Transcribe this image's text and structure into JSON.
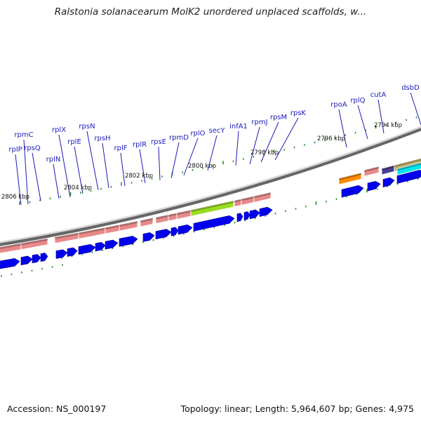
{
  "title": "Ralstonia solanacearum MolK2 unordered unplaced scaffolds, w...",
  "footer": {
    "accession": "Accession: NS_000197",
    "topology": "Topology: linear; Length: 5,964,607 bp; Genes: 4,975"
  },
  "colors": {
    "gene_label": "#1a1ab8",
    "leader_line": "#1a1ab8",
    "cds_arrow": "#0000ee",
    "rna_bar_pink": "#e88a8a",
    "rna_bar_green": "#99dd22",
    "rna_bar_orange": "#ff8c00",
    "rna_bar_purple": "#4c3f8f",
    "rna_bar_tan": "#bfb56a",
    "rna_bar_cyan": "#00e5ee",
    "axis": "#999999",
    "tick": "#228822"
  },
  "kbp_labels": [
    "2806 kbp",
    "2804 kbp",
    "2802 kbp",
    "2800 kbp",
    "2798 kbp",
    "2796 kbp",
    "2794 kbp"
  ],
  "gene_labels": [
    "rpmC",
    "rplP",
    "rpsQ",
    "rplX",
    "rplN",
    "rplE",
    "rpsN",
    "rpsH",
    "rplF",
    "rplR",
    "rpsE",
    "rpmD",
    "rplO",
    "secY",
    "infA1",
    "rpmJ",
    "rpsM",
    "rpsK",
    "rpoA",
    "rplQ",
    "cutA",
    "dsbD"
  ]
}
